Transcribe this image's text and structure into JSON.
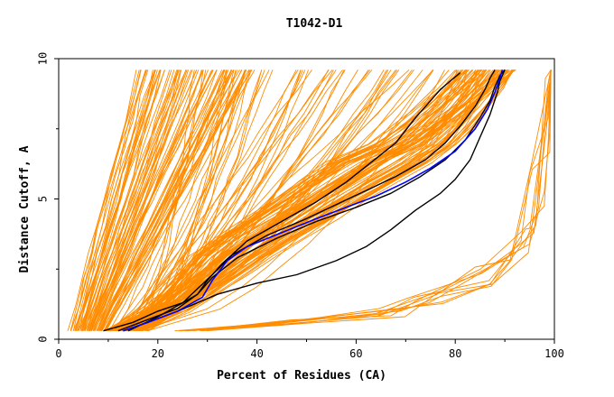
{
  "chart_data": {
    "type": "line",
    "title": "T1042-D1",
    "xlabel": "Percent of Residues (CA)",
    "ylabel": "Distance Cutoff, A",
    "xlim": [
      0,
      100
    ],
    "ylim": [
      0,
      10
    ],
    "x_ticks": [
      0,
      20,
      40,
      60,
      80,
      100
    ],
    "y_ticks": [
      0,
      5,
      10
    ],
    "grid": false,
    "colors": {
      "models": "#ff8c00",
      "highlight": "#000000",
      "best": "#0000ff",
      "axes": "#000000"
    },
    "series": [
      {
        "color": "#000000",
        "x": [
          9,
          15,
          20,
          25,
          28,
          30,
          33,
          38,
          45,
          52,
          58,
          63,
          68,
          72,
          75,
          77,
          79,
          81
        ],
        "y": [
          0.3,
          0.6,
          1.0,
          1.3,
          1.6,
          2.1,
          2.7,
          3.5,
          4.2,
          4.9,
          5.6,
          6.3,
          7.0,
          7.9,
          8.5,
          8.9,
          9.2,
          9.5
        ]
      },
      {
        "color": "#000000",
        "x": [
          14,
          20,
          25,
          28,
          31,
          35,
          42,
          50,
          56,
          62,
          68,
          74,
          78,
          81,
          84,
          86,
          87,
          88
        ],
        "y": [
          0.3,
          0.8,
          1.3,
          1.8,
          2.3,
          3.0,
          3.7,
          4.3,
          4.8,
          5.3,
          5.8,
          6.4,
          7.0,
          7.6,
          8.3,
          8.9,
          9.3,
          9.6
        ]
      },
      {
        "color": "#000000",
        "x": [
          12,
          18,
          24,
          28,
          31,
          36,
          44,
          52,
          60,
          67,
          73,
          78,
          82,
          85,
          87,
          88,
          89,
          90
        ],
        "y": [
          0.3,
          0.7,
          1.1,
          1.6,
          2.2,
          2.9,
          3.6,
          4.2,
          4.7,
          5.2,
          5.8,
          6.4,
          7.1,
          7.9,
          8.5,
          9.0,
          9.4,
          9.6
        ]
      },
      {
        "color": "#000000",
        "x": [
          13,
          18,
          24,
          32,
          40,
          48,
          56,
          62,
          67,
          72,
          77,
          80,
          83,
          85,
          87,
          88.5,
          89,
          90
        ],
        "y": [
          0.3,
          0.6,
          1.0,
          1.6,
          2.0,
          2.3,
          2.8,
          3.3,
          3.9,
          4.6,
          5.2,
          5.7,
          6.4,
          7.2,
          8.0,
          8.8,
          9.2,
          9.6
        ]
      },
      {
        "color": "#0000ff",
        "x": [
          13,
          18,
          24,
          29,
          31,
          34,
          38,
          45,
          52,
          58,
          64,
          70,
          75,
          80,
          84,
          86.5,
          88,
          89,
          89.5
        ],
        "y": [
          0.3,
          0.6,
          1.0,
          1.5,
          2.1,
          2.8,
          3.3,
          3.8,
          4.3,
          4.7,
          5.1,
          5.6,
          6.1,
          6.7,
          7.5,
          8.2,
          8.8,
          9.3,
          9.6
        ]
      }
    ]
  }
}
